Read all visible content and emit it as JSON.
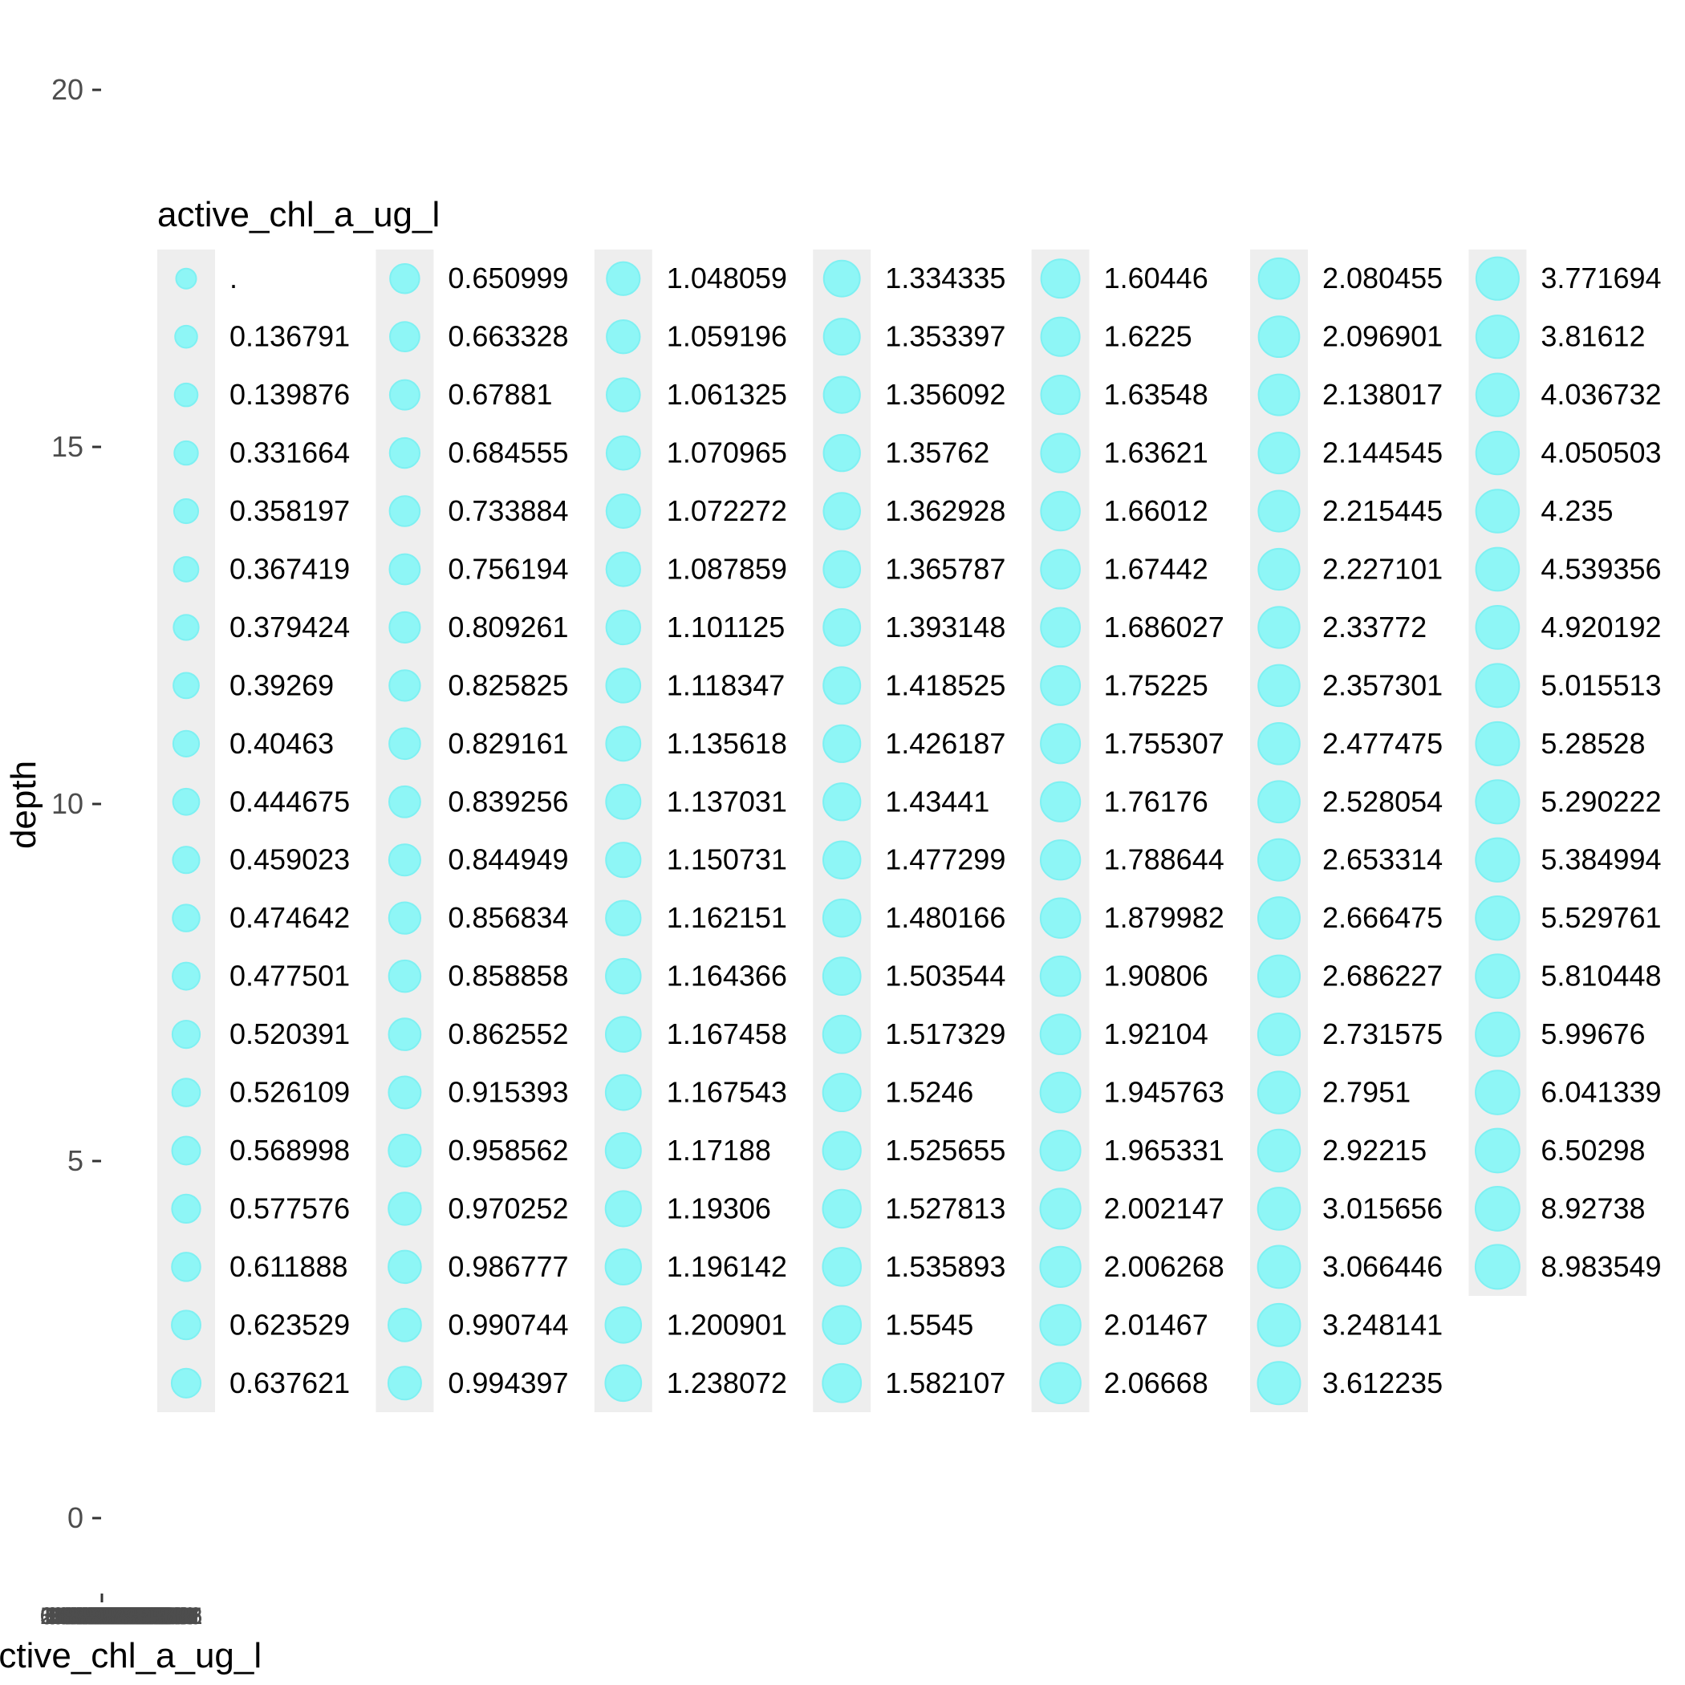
{
  "chart_data": {
    "type": "scatter",
    "title": "",
    "xlabel": "active_chl_a_ug_l",
    "ylabel": "depth",
    "y_ticks": [
      "0",
      "5",
      "10",
      "15",
      "20"
    ],
    "ylim": [
      0,
      20
    ],
    "grid": false,
    "legend": {
      "title": "active_chl_a_ug_l",
      "placement": "inside-plot",
      "marker_color": "#8ef6f6",
      "marker_edge_color": "#7ef0f2",
      "key_background": "#eeeeee",
      "columns": [
        [
          ".",
          "0.136791",
          "0.139876",
          "0.331664",
          "0.358197",
          "0.367419",
          "0.379424",
          "0.39269",
          "0.40463",
          "0.444675",
          "0.459023",
          "0.474642",
          "0.477501",
          "0.520391",
          "0.526109",
          "0.568998",
          "0.577576",
          "0.611888",
          "0.623529",
          "0.637621"
        ],
        [
          "0.650999",
          "0.663328",
          "0.67881",
          "0.684555",
          "0.733884",
          "0.756194",
          "0.809261",
          "0.825825",
          "0.829161",
          "0.839256",
          "0.844949",
          "0.856834",
          "0.858858",
          "0.862552",
          "0.915393",
          "0.958562",
          "0.970252",
          "0.986777",
          "0.990744",
          "0.994397"
        ],
        [
          "1.048059",
          "1.059196",
          "1.061325",
          "1.070965",
          "1.072272",
          "1.087859",
          "1.101125",
          "1.118347",
          "1.135618",
          "1.137031",
          "1.150731",
          "1.162151",
          "1.164366",
          "1.167458",
          "1.167543",
          "1.17188",
          "1.19306",
          "1.196142",
          "1.200901",
          "1.238072"
        ],
        [
          "1.334335",
          "1.353397",
          "1.356092",
          "1.35762",
          "1.362928",
          "1.365787",
          "1.393148",
          "1.418525",
          "1.426187",
          "1.43441",
          "1.477299",
          "1.480166",
          "1.503544",
          "1.517329",
          "1.5246",
          "1.525655",
          "1.527813",
          "1.535893",
          "1.5545",
          "1.582107"
        ],
        [
          "1.60446",
          "1.6225",
          "1.63548",
          "1.63621",
          "1.66012",
          "1.67442",
          "1.686027",
          "1.75225",
          "1.755307",
          "1.76176",
          "1.788644",
          "1.879982",
          "1.90806",
          "1.92104",
          "1.945763",
          "1.965331",
          "2.002147",
          "2.006268",
          "2.01467",
          "2.06668"
        ],
        [
          "2.080455",
          "2.096901",
          "2.138017",
          "2.144545",
          "2.215445",
          "2.227101",
          "2.33772",
          "2.357301",
          "2.477475",
          "2.528054",
          "2.653314",
          "2.666475",
          "2.686227",
          "2.731575",
          "2.7951",
          "2.92215",
          "3.015656",
          "3.066446",
          "3.248141",
          "3.612235"
        ],
        [
          "3.771694",
          "3.81612",
          "4.036732",
          "4.050503",
          "4.235",
          "4.539356",
          "4.920192",
          "5.015513",
          "5.28528",
          "5.290222",
          "5.384994",
          "5.529761",
          "5.810448",
          "5.99676",
          "6.041339",
          "6.50298",
          "8.92738",
          "8.983549"
        ]
      ]
    }
  }
}
